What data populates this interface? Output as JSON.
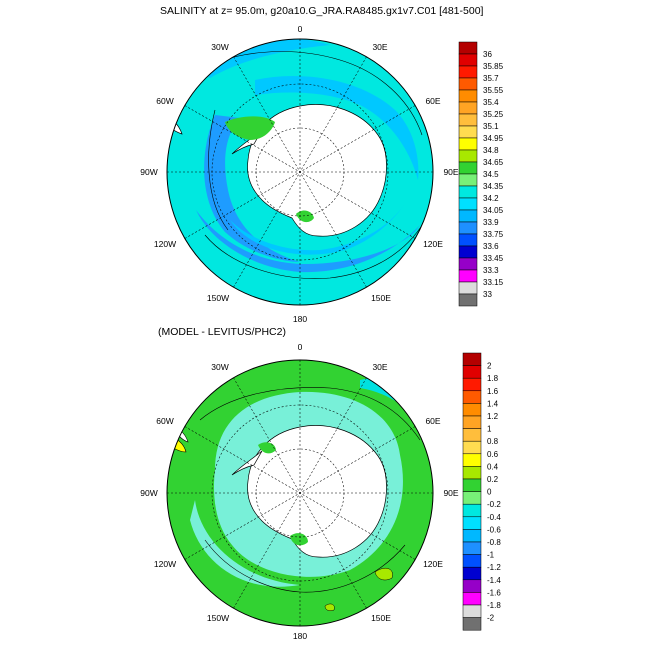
{
  "top": {
    "title": "SALINITY at z=  95.0m, g20a10.G_JRA.RA8485.gx1v7.C01 [481-500]",
    "lon_labels": {
      "n": "0",
      "s": "180",
      "w30": "30W",
      "e30": "30E",
      "w60": "60W",
      "e60": "60E",
      "w90": "90W",
      "e90": "90E",
      "w120": "120W",
      "e120": "120E",
      "w150": "150W",
      "e150": "150E"
    },
    "colorbar": {
      "labels": [
        "36",
        "35.85",
        "35.7",
        "35.55",
        "35.4",
        "35.25",
        "35.1",
        "34.95",
        "34.8",
        "34.65",
        "34.5",
        "34.35",
        "34.2",
        "34.05",
        "33.9",
        "33.75",
        "33.6",
        "33.45",
        "33.3",
        "33.15",
        "33"
      ],
      "colors": [
        "#b40000",
        "#e00000",
        "#ff1a00",
        "#ff5a00",
        "#ff8c00",
        "#ffa424",
        "#ffbe3c",
        "#ffdc50",
        "#ffff00",
        "#a8e800",
        "#32d232",
        "#78f078",
        "#00e8e0",
        "#00e0ff",
        "#00b8ff",
        "#1e90ff",
        "#0050ff",
        "#0000d0",
        "#9600c8",
        "#ff00ff",
        "#dcdcdc",
        "#707070"
      ]
    }
  },
  "bottom": {
    "title": "(MODEL - LEVITUS/PHC2)",
    "lon_labels": {
      "n": "0",
      "s": "180",
      "w30": "30W",
      "e30": "30E",
      "w60": "60W",
      "e60": "60E",
      "w90": "90W",
      "e90": "90E",
      "w120": "120W",
      "e120": "120E",
      "w150": "150W",
      "e150": "150E"
    },
    "colorbar": {
      "labels": [
        "2",
        "1.8",
        "1.6",
        "1.4",
        "1.2",
        "1",
        "0.8",
        "0.6",
        "0.4",
        "0.2",
        "0",
        "-0.2",
        "-0.4",
        "-0.6",
        "-0.8",
        "-1",
        "-1.2",
        "-1.4",
        "-1.6",
        "-1.8",
        "-2"
      ],
      "colors": [
        "#b40000",
        "#e00000",
        "#ff1a00",
        "#ff5a00",
        "#ff8c00",
        "#ffa424",
        "#ffbe3c",
        "#ffdc50",
        "#ffff00",
        "#a8e800",
        "#32d232",
        "#78f078",
        "#00e8e0",
        "#00e0ff",
        "#00b8ff",
        "#1e90ff",
        "#0050ff",
        "#0000d0",
        "#9600c8",
        "#ff00ff",
        "#dcdcdc",
        "#707070"
      ]
    }
  },
  "palette": {
    "land": "#ffffff",
    "top_background": "#00e8e0",
    "top_deep": "#1e9cff",
    "top_mid": "#00c8ff",
    "top_fresh": "#32d232",
    "bottom_background": "#32d232",
    "bottom_cyan": "#78f0d8",
    "bottom_aqua": "#00e0e0"
  }
}
